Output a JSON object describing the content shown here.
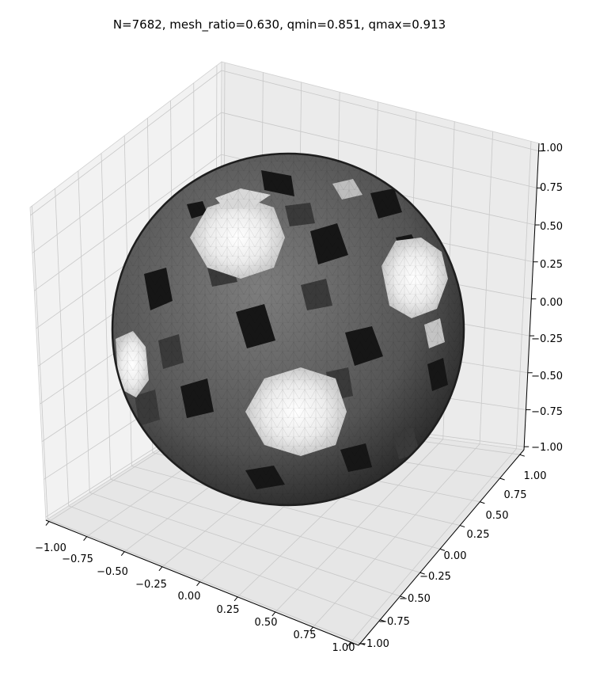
{
  "chart_data": {
    "type": "surface3d",
    "title": "N=7682, mesh_ratio=0.630, qmin=0.851, qmax=0.913",
    "xlabel": "",
    "ylabel": "",
    "zlabel": "",
    "surface": "unit sphere, triangulated mesh, grayscale shading",
    "N": 7682,
    "mesh_ratio": 0.63,
    "qmin": 0.851,
    "qmax": 0.913,
    "xlim": [
      -1.0,
      1.0
    ],
    "ylim": [
      -1.0,
      1.0
    ],
    "zlim": [
      -1.0,
      1.0
    ],
    "grid": true,
    "x_ticks": [
      "−1.00",
      "−0.75",
      "−0.50",
      "−0.25",
      "0.00",
      "0.25",
      "0.50",
      "0.75",
      "1.00"
    ],
    "y_ticks": [
      "−1.00",
      "−0.75",
      "−0.50",
      "−0.25",
      "0.00",
      "0.25",
      "0.50",
      "0.75",
      "1.00"
    ],
    "z_ticks": [
      "−1.00",
      "−0.75",
      "−0.50",
      "−0.25",
      "0.00",
      "0.25",
      "0.50",
      "0.75",
      "1.00"
    ],
    "pane_color": "#f2f2f2",
    "grid_color": "#c8c8c8",
    "colormap": "gray"
  }
}
